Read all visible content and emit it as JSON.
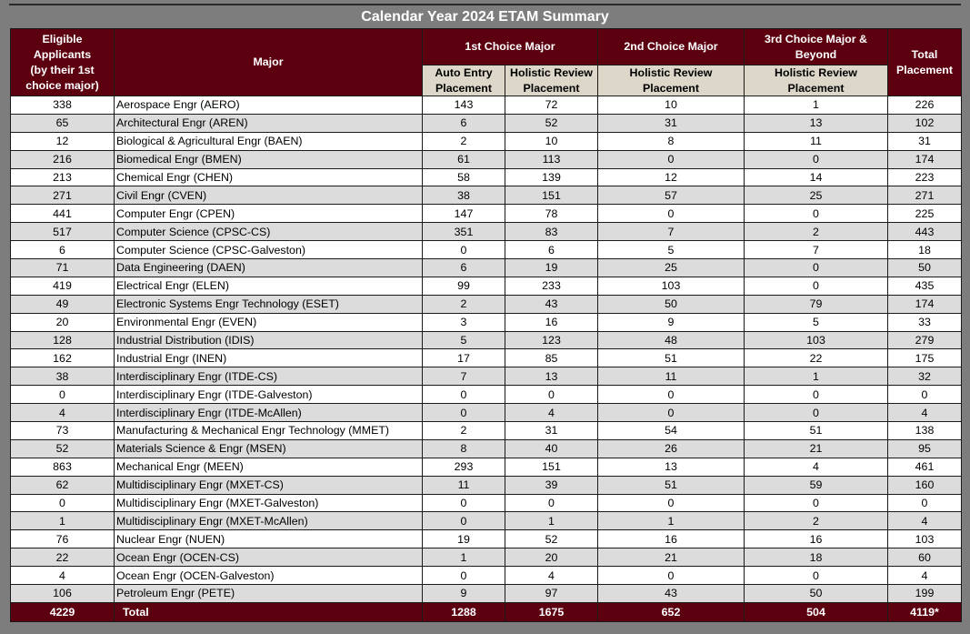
{
  "title": "Calendar Year 2024 ETAM Summary",
  "headers": {
    "eligible": [
      "Eligible",
      "Applicants",
      "(by their 1st",
      "choice major)"
    ],
    "major": "Major",
    "first_choice": "1st Choice Major",
    "second_choice": "2nd Choice Major",
    "third_choice": [
      "3rd Choice Major &",
      "Beyond"
    ],
    "total_placement": [
      "Total",
      "Placement"
    ],
    "auto_entry": [
      "Auto Entry",
      "Placement"
    ],
    "holistic_1": [
      "Holistic Review",
      "Placement"
    ],
    "holistic_2": [
      "Holistic Review",
      "Placement"
    ],
    "holistic_3": [
      "Holistic Review",
      "Placement"
    ]
  },
  "rows": [
    {
      "eligible": "338",
      "major": "Aerospace Engr (AERO)",
      "auto": "143",
      "hol1": "72",
      "hol2": "10",
      "hol3": "1",
      "total": "226"
    },
    {
      "eligible": "65",
      "major": "Architectural Engr (AREN)",
      "auto": "6",
      "hol1": "52",
      "hol2": "31",
      "hol3": "13",
      "total": "102"
    },
    {
      "eligible": "12",
      "major": "Biological & Agricultural Engr (BAEN)",
      "auto": "2",
      "hol1": "10",
      "hol2": "8",
      "hol3": "11",
      "total": "31"
    },
    {
      "eligible": "216",
      "major": "Biomedical Engr (BMEN)",
      "auto": "61",
      "hol1": "113",
      "hol2": "0",
      "hol3": "0",
      "total": "174"
    },
    {
      "eligible": "213",
      "major": "Chemical Engr (CHEN)",
      "auto": "58",
      "hol1": "139",
      "hol2": "12",
      "hol3": "14",
      "total": "223"
    },
    {
      "eligible": "271",
      "major": "Civil Engr (CVEN)",
      "auto": "38",
      "hol1": "151",
      "hol2": "57",
      "hol3": "25",
      "total": "271"
    },
    {
      "eligible": "441",
      "major": "Computer Engr (CPEN)",
      "auto": "147",
      "hol1": "78",
      "hol2": "0",
      "hol3": "0",
      "total": "225"
    },
    {
      "eligible": "517",
      "major": "Computer Science (CPSC-CS)",
      "auto": "351",
      "hol1": "83",
      "hol2": "7",
      "hol3": "2",
      "total": "443"
    },
    {
      "eligible": "6",
      "major": "Computer Science (CPSC-Galveston)",
      "auto": "0",
      "hol1": "6",
      "hol2": "5",
      "hol3": "7",
      "total": "18"
    },
    {
      "eligible": "71",
      "major": "Data Engineering (DAEN)",
      "auto": "6",
      "hol1": "19",
      "hol2": "25",
      "hol3": "0",
      "total": "50"
    },
    {
      "eligible": "419",
      "major": "Electrical Engr (ELEN)",
      "auto": "99",
      "hol1": "233",
      "hol2": "103",
      "hol3": "0",
      "total": "435"
    },
    {
      "eligible": "49",
      "major": "Electronic Systems Engr Technology (ESET)",
      "auto": "2",
      "hol1": "43",
      "hol2": "50",
      "hol3": "79",
      "total": "174"
    },
    {
      "eligible": "20",
      "major": "Environmental Engr (EVEN)",
      "auto": "3",
      "hol1": "16",
      "hol2": "9",
      "hol3": "5",
      "total": "33"
    },
    {
      "eligible": "128",
      "major": "Industrial Distribution (IDIS)",
      "auto": "5",
      "hol1": "123",
      "hol2": "48",
      "hol3": "103",
      "total": "279"
    },
    {
      "eligible": "162",
      "major": "Industrial Engr (INEN)",
      "auto": "17",
      "hol1": "85",
      "hol2": "51",
      "hol3": "22",
      "total": "175"
    },
    {
      "eligible": "38",
      "major": "Interdisciplinary Engr (ITDE-CS)",
      "auto": "7",
      "hol1": "13",
      "hol2": "11",
      "hol3": "1",
      "total": "32"
    },
    {
      "eligible": "0",
      "major": "Interdisciplinary Engr (ITDE-Galveston)",
      "auto": "0",
      "hol1": "0",
      "hol2": "0",
      "hol3": "0",
      "total": "0"
    },
    {
      "eligible": "4",
      "major": "Interdisciplinary Engr (ITDE-McAllen)",
      "auto": "0",
      "hol1": "4",
      "hol2": "0",
      "hol3": "0",
      "total": "4"
    },
    {
      "eligible": "73",
      "major": "Manufacturing & Mechanical Engr Technology (MMET)",
      "auto": "2",
      "hol1": "31",
      "hol2": "54",
      "hol3": "51",
      "total": "138"
    },
    {
      "eligible": "52",
      "major": "Materials Science & Engr (MSEN)",
      "auto": "8",
      "hol1": "40",
      "hol2": "26",
      "hol3": "21",
      "total": "95"
    },
    {
      "eligible": "863",
      "major": "Mechanical Engr (MEEN)",
      "auto": "293",
      "hol1": "151",
      "hol2": "13",
      "hol3": "4",
      "total": "461"
    },
    {
      "eligible": "62",
      "major": "Multidisciplinary Engr (MXET-CS)",
      "auto": "11",
      "hol1": "39",
      "hol2": "51",
      "hol3": "59",
      "total": "160"
    },
    {
      "eligible": "0",
      "major": "Multidisciplinary Engr (MXET-Galveston)",
      "auto": "0",
      "hol1": "0",
      "hol2": "0",
      "hol3": "0",
      "total": "0"
    },
    {
      "eligible": "1",
      "major": "Multidisciplinary Engr (MXET-McAllen)",
      "auto": "0",
      "hol1": "1",
      "hol2": "1",
      "hol3": "2",
      "total": "4"
    },
    {
      "eligible": "76",
      "major": "Nuclear Engr (NUEN)",
      "auto": "19",
      "hol1": "52",
      "hol2": "16",
      "hol3": "16",
      "total": "103"
    },
    {
      "eligible": "22",
      "major": "Ocean Engr (OCEN-CS)",
      "auto": "1",
      "hol1": "20",
      "hol2": "21",
      "hol3": "18",
      "total": "60"
    },
    {
      "eligible": "4",
      "major": "Ocean Engr (OCEN-Galveston)",
      "auto": "0",
      "hol1": "4",
      "hol2": "0",
      "hol3": "0",
      "total": "4"
    },
    {
      "eligible": "106",
      "major": "Petroleum Engr (PETE)",
      "auto": "9",
      "hol1": "97",
      "hol2": "43",
      "hol3": "50",
      "total": "199"
    }
  ],
  "totals": {
    "eligible": "4229",
    "major": "Total",
    "auto": "1288",
    "hol1": "1675",
    "hol2": "652",
    "hol3": "504",
    "total": "4119*"
  }
}
